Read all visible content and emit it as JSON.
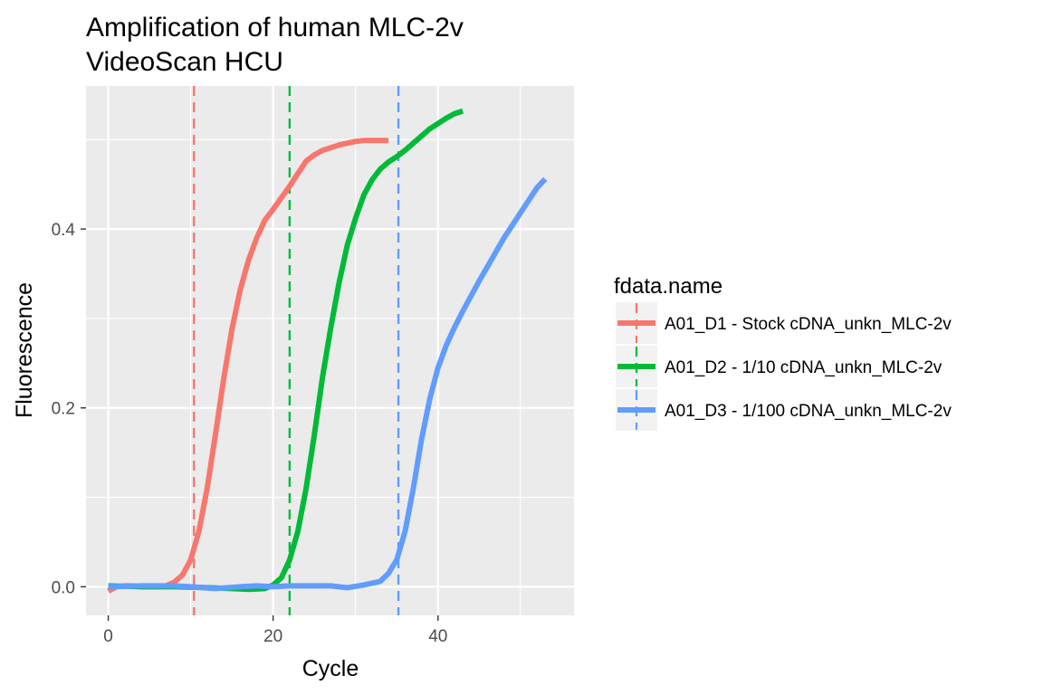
{
  "chart_data": {
    "type": "line",
    "title": "Amplification of human MLC-2v",
    "subtitle": "VideoScan HCU",
    "xlabel": "Cycle",
    "ylabel": "Fluorescence",
    "xlim": [
      -2.7,
      56.5
    ],
    "ylim": [
      -0.032,
      0.56
    ],
    "x_ticks": [
      0,
      20,
      40
    ],
    "x_tick_labels": [
      "0",
      "20",
      "40"
    ],
    "y_ticks": [
      0.0,
      0.2,
      0.4
    ],
    "y_tick_labels": [
      "0.0",
      "0.2",
      "0.4"
    ],
    "grid": true,
    "legend": {
      "title": "fdata.name",
      "position": "right"
    },
    "series": [
      {
        "name": "A01_D1 - Stock cDNA_unkn_MLC-2v",
        "color": "#F8766D",
        "threshold_cycle": 10.4,
        "points": [
          [
            0,
            -0.005
          ],
          [
            1,
            0
          ],
          [
            2,
            0.001
          ],
          [
            3,
            0.001
          ],
          [
            4,
            0
          ],
          [
            5,
            0
          ],
          [
            6,
            0
          ],
          [
            7,
            0.001
          ],
          [
            8,
            0.005
          ],
          [
            9,
            0.013
          ],
          [
            10,
            0.03
          ],
          [
            11,
            0.062
          ],
          [
            12,
            0.11
          ],
          [
            13,
            0.17
          ],
          [
            14,
            0.232
          ],
          [
            15,
            0.288
          ],
          [
            16,
            0.332
          ],
          [
            17,
            0.365
          ],
          [
            18,
            0.39
          ],
          [
            19,
            0.41
          ],
          [
            20,
            0.422
          ],
          [
            21,
            0.435
          ],
          [
            22,
            0.448
          ],
          [
            23,
            0.462
          ],
          [
            24,
            0.476
          ],
          [
            25,
            0.483
          ],
          [
            26,
            0.488
          ],
          [
            27,
            0.491
          ],
          [
            28,
            0.494
          ],
          [
            29,
            0.496
          ],
          [
            30,
            0.498
          ],
          [
            31,
            0.499
          ],
          [
            32,
            0.499
          ],
          [
            33,
            0.499
          ],
          [
            34,
            0.499
          ]
        ]
      },
      {
        "name": "A01_D2 - 1/10 cDNA_unkn_MLC-2v",
        "color": "#00BA38",
        "threshold_cycle": 22.0,
        "points": [
          [
            0,
            0.001
          ],
          [
            4,
            0
          ],
          [
            8,
            0
          ],
          [
            12,
            -0.001
          ],
          [
            15,
            -0.002
          ],
          [
            17,
            -0.003
          ],
          [
            19,
            -0.002
          ],
          [
            20,
            0.002
          ],
          [
            21,
            0.01
          ],
          [
            22,
            0.03
          ],
          [
            23,
            0.062
          ],
          [
            24,
            0.11
          ],
          [
            25,
            0.17
          ],
          [
            26,
            0.235
          ],
          [
            27,
            0.29
          ],
          [
            28,
            0.34
          ],
          [
            29,
            0.382
          ],
          [
            30,
            0.412
          ],
          [
            31,
            0.438
          ],
          [
            32,
            0.455
          ],
          [
            33,
            0.467
          ],
          [
            34,
            0.475
          ],
          [
            35,
            0.481
          ],
          [
            36,
            0.488
          ],
          [
            37,
            0.496
          ],
          [
            38,
            0.504
          ],
          [
            39,
            0.512
          ],
          [
            40,
            0.518
          ],
          [
            41,
            0.524
          ],
          [
            42,
            0.529
          ],
          [
            43,
            0.532
          ]
        ]
      },
      {
        "name": "A01_D3 - 1/100 cDNA_unkn_MLC-2v",
        "color": "#619CFF",
        "threshold_cycle": 35.2,
        "points": [
          [
            0,
            0
          ],
          [
            4,
            0.001
          ],
          [
            8,
            0.001
          ],
          [
            10,
            0
          ],
          [
            13,
            -0.002
          ],
          [
            16,
            0
          ],
          [
            18,
            0.001
          ],
          [
            20,
            0
          ],
          [
            22,
            0.001
          ],
          [
            25,
            0.001
          ],
          [
            27,
            0.001
          ],
          [
            29,
            -0.001
          ],
          [
            31,
            0.002
          ],
          [
            33,
            0.006
          ],
          [
            34,
            0.015
          ],
          [
            35,
            0.03
          ],
          [
            36,
            0.062
          ],
          [
            37,
            0.11
          ],
          [
            38,
            0.165
          ],
          [
            39,
            0.21
          ],
          [
            40,
            0.245
          ],
          [
            41,
            0.27
          ],
          [
            42,
            0.29
          ],
          [
            43,
            0.308
          ],
          [
            44,
            0.325
          ],
          [
            45,
            0.342
          ],
          [
            46,
            0.358
          ],
          [
            47,
            0.374
          ],
          [
            48,
            0.39
          ],
          [
            49,
            0.404
          ],
          [
            50,
            0.418
          ],
          [
            51,
            0.432
          ],
          [
            52,
            0.446
          ],
          [
            53,
            0.456
          ]
        ]
      }
    ]
  }
}
